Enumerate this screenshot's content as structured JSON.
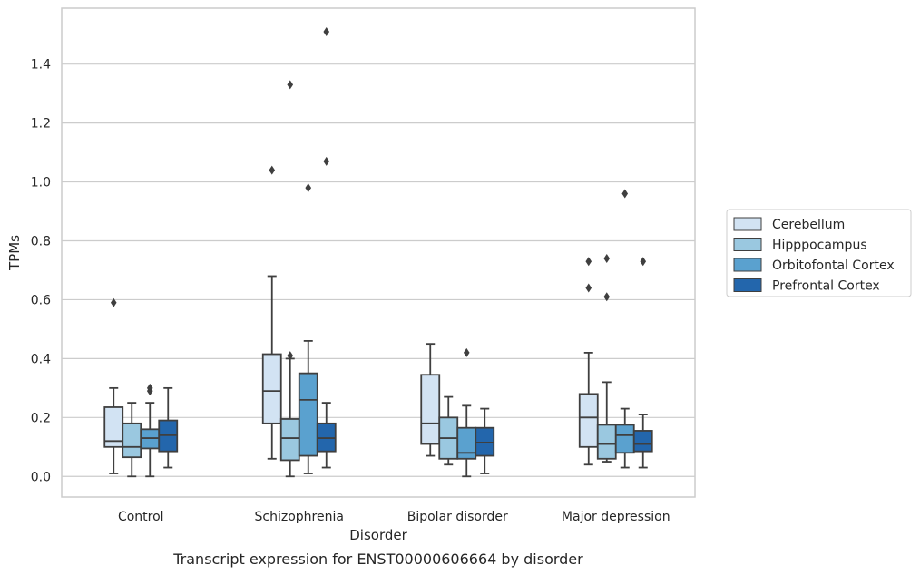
{
  "caption": "Transcript expression for ENST00000606664 by disorder",
  "chart_data": {
    "type": "box",
    "xlabel": "Disorder",
    "ylabel": "TPMs",
    "ylim": [
      -0.07,
      1.59
    ],
    "yticks": [
      "0.0",
      "0.2",
      "0.4",
      "0.6",
      "0.8",
      "1.0",
      "1.2",
      "1.4"
    ],
    "ytick_values": [
      0,
      0.2,
      0.4,
      0.6,
      0.8,
      1.0,
      1.2,
      1.4
    ],
    "grid": true,
    "legend_position": "right",
    "categories": [
      "Control",
      "Schizophrenia",
      "Bipolar disorder",
      "Major depression"
    ],
    "series": [
      {
        "name": "Cerebellum",
        "color": "#d2e3f3",
        "boxes": [
          {
            "whislo": 0.01,
            "q1": 0.1,
            "med": 0.12,
            "q3": 0.235,
            "whishi": 0.3,
            "fliers": [
              0.59
            ]
          },
          {
            "whislo": 0.06,
            "q1": 0.18,
            "med": 0.29,
            "q3": 0.415,
            "whishi": 0.68,
            "fliers": [
              1.04
            ]
          },
          {
            "whislo": 0.07,
            "q1": 0.11,
            "med": 0.18,
            "q3": 0.345,
            "whishi": 0.45,
            "fliers": []
          },
          {
            "whislo": 0.04,
            "q1": 0.1,
            "med": 0.2,
            "q3": 0.28,
            "whishi": 0.42,
            "fliers": [
              0.64,
              0.73
            ]
          }
        ]
      },
      {
        "name": "Hipppocampus",
        "color": "#9ac8e0",
        "boxes": [
          {
            "whislo": 0.0,
            "q1": 0.065,
            "med": 0.1,
            "q3": 0.18,
            "whishi": 0.25,
            "fliers": []
          },
          {
            "whislo": 0.0,
            "q1": 0.055,
            "med": 0.13,
            "q3": 0.195,
            "whishi": 0.4,
            "fliers": [
              0.41,
              1.33
            ]
          },
          {
            "whislo": 0.04,
            "q1": 0.06,
            "med": 0.13,
            "q3": 0.2,
            "whishi": 0.27,
            "fliers": []
          },
          {
            "whislo": 0.05,
            "q1": 0.06,
            "med": 0.11,
            "q3": 0.175,
            "whishi": 0.32,
            "fliers": [
              0.61,
              0.74
            ]
          }
        ]
      },
      {
        "name": "Orbitofontal Cortex",
        "color": "#5aa1cf",
        "boxes": [
          {
            "whislo": 0.0,
            "q1": 0.095,
            "med": 0.13,
            "q3": 0.16,
            "whishi": 0.25,
            "fliers": [
              0.29,
              0.3
            ]
          },
          {
            "whislo": 0.01,
            "q1": 0.07,
            "med": 0.26,
            "q3": 0.35,
            "whishi": 0.46,
            "fliers": [
              0.98
            ]
          },
          {
            "whislo": 0.0,
            "q1": 0.06,
            "med": 0.08,
            "q3": 0.165,
            "whishi": 0.24,
            "fliers": [
              0.42
            ]
          },
          {
            "whislo": 0.03,
            "q1": 0.08,
            "med": 0.14,
            "q3": 0.175,
            "whishi": 0.23,
            "fliers": [
              0.96
            ]
          }
        ]
      },
      {
        "name": "Prefrontal Cortex",
        "color": "#2366ac",
        "boxes": [
          {
            "whislo": 0.03,
            "q1": 0.085,
            "med": 0.14,
            "q3": 0.19,
            "whishi": 0.3,
            "fliers": []
          },
          {
            "whislo": 0.03,
            "q1": 0.085,
            "med": 0.13,
            "q3": 0.18,
            "whishi": 0.25,
            "fliers": [
              1.07,
              1.51
            ]
          },
          {
            "whislo": 0.01,
            "q1": 0.07,
            "med": 0.115,
            "q3": 0.165,
            "whishi": 0.23,
            "fliers": []
          },
          {
            "whislo": 0.03,
            "q1": 0.085,
            "med": 0.11,
            "q3": 0.155,
            "whishi": 0.21,
            "fliers": [
              0.73
            ]
          }
        ]
      }
    ]
  }
}
